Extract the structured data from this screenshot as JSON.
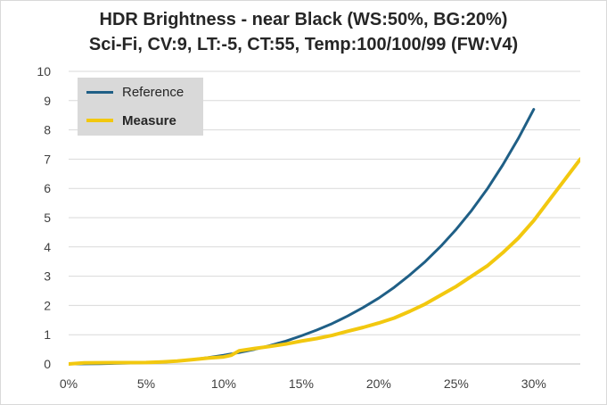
{
  "chart_data": {
    "type": "line",
    "title_line1": "HDR Brightness - near Black (WS:50%, BG:20%)",
    "title_line2": "Sci-Fi, CV:9, LT:-5, CT:55, Temp:100/100/99 (FW:V4)",
    "xlabel": "",
    "ylabel": "",
    "xlim": [
      0,
      33
    ],
    "ylim": [
      0,
      10
    ],
    "x_ticks": [
      0,
      5,
      10,
      15,
      20,
      25,
      30
    ],
    "x_tick_labels": [
      "0%",
      "5%",
      "10%",
      "15%",
      "20%",
      "25%",
      "30%"
    ],
    "y_ticks": [
      0,
      1,
      2,
      3,
      4,
      5,
      6,
      7,
      8,
      9,
      10
    ],
    "y_tick_labels": [
      "0",
      "1",
      "2",
      "3",
      "4",
      "5",
      "6",
      "7",
      "8",
      "9",
      "10"
    ],
    "grid": "horizontal",
    "legend_position": "top-left",
    "series": [
      {
        "name": "Reference",
        "color": "#1f5f86",
        "x": [
          0,
          2,
          4,
          6,
          7,
          8,
          9,
          10,
          11,
          12,
          13,
          14,
          15,
          16,
          17,
          18,
          19,
          20,
          21,
          22,
          23,
          24,
          25,
          26,
          27,
          28,
          29,
          30
        ],
        "y": [
          0,
          0.01,
          0.03,
          0.06,
          0.1,
          0.15,
          0.22,
          0.3,
          0.39,
          0.5,
          0.63,
          0.78,
          0.96,
          1.16,
          1.38,
          1.64,
          1.93,
          2.25,
          2.62,
          3.04,
          3.5,
          4.02,
          4.6,
          5.25,
          5.98,
          6.8,
          7.7,
          8.7
        ]
      },
      {
        "name": "Measure",
        "color": "#f2c80f",
        "x": [
          0,
          1,
          5,
          6,
          7,
          8,
          9,
          10,
          10.5,
          11,
          12,
          13,
          14,
          15,
          16,
          17,
          18,
          19,
          20,
          21,
          22,
          23,
          24,
          25,
          26,
          27,
          28,
          29,
          30,
          31,
          32,
          33
        ],
        "y": [
          0,
          0.04,
          0.05,
          0.07,
          0.1,
          0.15,
          0.2,
          0.24,
          0.3,
          0.45,
          0.53,
          0.6,
          0.68,
          0.78,
          0.87,
          0.98,
          1.12,
          1.25,
          1.4,
          1.57,
          1.8,
          2.05,
          2.35,
          2.65,
          3.0,
          3.35,
          3.8,
          4.3,
          4.9,
          5.6,
          6.3,
          7.0
        ]
      }
    ]
  }
}
